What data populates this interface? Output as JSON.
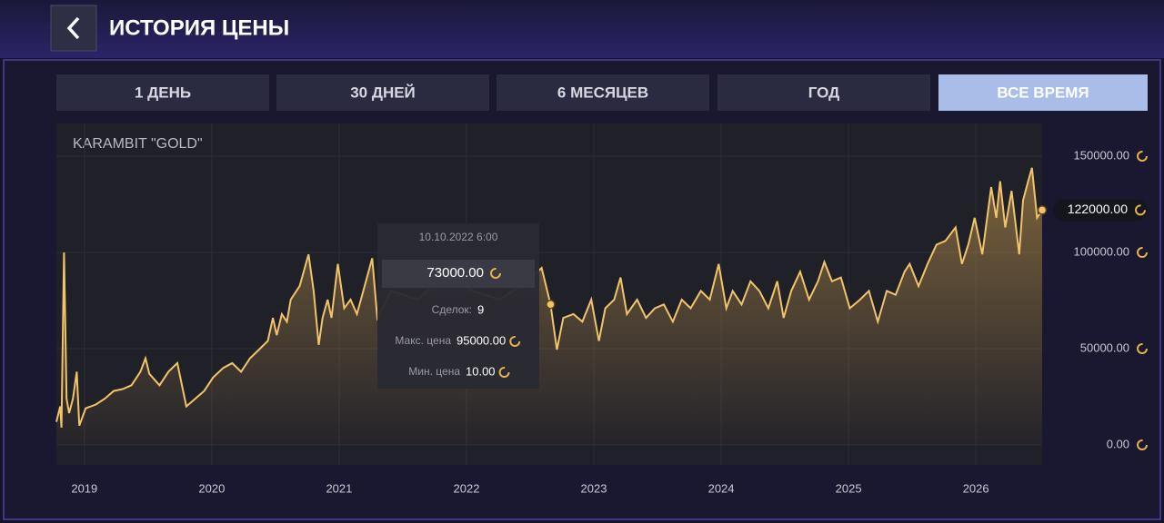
{
  "header": {
    "title": "ИСТОРИЯ ЦЕНЫ"
  },
  "tabs": [
    {
      "label": "1 ДЕНЬ",
      "active": false
    },
    {
      "label": "30 ДНЕЙ",
      "active": false
    },
    {
      "label": "6 МЕСЯЦЕВ",
      "active": false
    },
    {
      "label": "ГОД",
      "active": false
    },
    {
      "label": "ВСЕ ВРЕМЯ",
      "active": true
    }
  ],
  "chart_data": {
    "type": "line",
    "title": "KARAMBIT \"GOLD\"",
    "x": [
      2018.78,
      2018.81,
      2018.82,
      2018.84,
      2018.86,
      2018.88,
      2018.91,
      2018.94,
      2018.96,
      2019.01,
      2019.09,
      2019.16,
      2019.23,
      2019.3,
      2019.37,
      2019.44,
      2019.48,
      2019.51,
      2019.59,
      2019.66,
      2019.73,
      2019.8,
      2019.87,
      2019.94,
      2020.01,
      2020.09,
      2020.16,
      2020.23,
      2020.3,
      2020.37,
      2020.44,
      2020.48,
      2020.51,
      2020.55,
      2020.59,
      2020.62,
      2020.69,
      2020.76,
      2020.8,
      2020.84,
      2020.87,
      2020.91,
      2020.94,
      2020.99,
      2021.04,
      2021.09,
      2021.14,
      2021.19,
      2021.26,
      2021.3,
      2021.41,
      2021.62,
      2021.84,
      2022.05,
      2022.26,
      2022.48,
      2022.59,
      2022.66,
      2022.71,
      2022.76,
      2022.84,
      2022.91,
      2022.98,
      2023.04,
      2023.09,
      2023.16,
      2023.21,
      2023.26,
      2023.34,
      2023.41,
      2023.48,
      2023.55,
      2023.62,
      2023.69,
      2023.76,
      2023.84,
      2023.91,
      2023.98,
      2024.04,
      2024.09,
      2024.16,
      2024.23,
      2024.3,
      2024.37,
      2024.44,
      2024.49,
      2024.55,
      2024.62,
      2024.69,
      2024.76,
      2024.81,
      2024.87,
      2024.94,
      2025.01,
      2025.09,
      2025.16,
      2025.23,
      2025.3,
      2025.37,
      2025.44,
      2025.48,
      2025.55,
      2025.62,
      2025.69,
      2025.76,
      2025.84,
      2025.89,
      2025.94,
      2025.99,
      2026.05,
      2026.12,
      2026.16,
      2026.19,
      2026.23,
      2026.28,
      2026.34,
      2026.37,
      2026.41,
      2026.44,
      2026.48,
      2026.52
    ],
    "series": [
      {
        "color": "#f2c46a",
        "values": [
          12000,
          20000,
          9000,
          100000,
          24000,
          16500,
          24000,
          38000,
          10000,
          19000,
          21000,
          24000,
          28000,
          29000,
          31000,
          38000,
          45000,
          37000,
          31000,
          38000,
          42500,
          20000,
          24000,
          28000,
          35000,
          40000,
          42500,
          38000,
          45000,
          49500,
          54000,
          66000,
          57000,
          68000,
          64000,
          75500,
          82500,
          99000,
          80000,
          52000,
          66000,
          75500,
          66000,
          94000,
          71000,
          75500,
          68000,
          80000,
          97000,
          66000,
          80000,
          75500,
          90000,
          80000,
          75500,
          85000,
          92000,
          73000,
          49500,
          66000,
          68000,
          64000,
          75500,
          54000,
          71000,
          75500,
          87000,
          68000,
          75500,
          66000,
          71000,
          73000,
          64000,
          75500,
          71000,
          80000,
          75500,
          94000,
          71000,
          80000,
          73000,
          85000,
          80000,
          71000,
          85000,
          66000,
          80000,
          90000,
          75500,
          85000,
          95000,
          85000,
          87000,
          71000,
          75500,
          80000,
          64000,
          80000,
          78000,
          90000,
          94000,
          82500,
          94000,
          104000,
          106000,
          113000,
          94000,
          104000,
          118000,
          99000,
          134000,
          118000,
          137000,
          113000,
          132000,
          99000,
          127000,
          137000,
          144000,
          118000,
          122000
        ]
      }
    ],
    "xlim": [
      2018.78,
      2026.52
    ],
    "xticks": [
      2019,
      2020,
      2021,
      2022,
      2023,
      2024,
      2025,
      2026
    ],
    "ylim": [
      0,
      167000
    ],
    "yticks": [
      {
        "value": 0,
        "label": "0.00"
      },
      {
        "value": 50000,
        "label": "50000.00"
      },
      {
        "value": 100000,
        "label": "100000.00"
      },
      {
        "value": 150000,
        "label": "150000.00"
      }
    ],
    "grid": true,
    "current_value": {
      "value": 122000,
      "label": "122000.00"
    },
    "tooltip": {
      "date": "10.10.2022 6:00",
      "price": {
        "value": 73000,
        "label": "73000.00"
      },
      "deals_label": "Сделок:",
      "deals": 9,
      "max_label": "Макс. цена",
      "max": "95000.00",
      "min_label": "Мин. цена",
      "min": "10.00"
    }
  }
}
